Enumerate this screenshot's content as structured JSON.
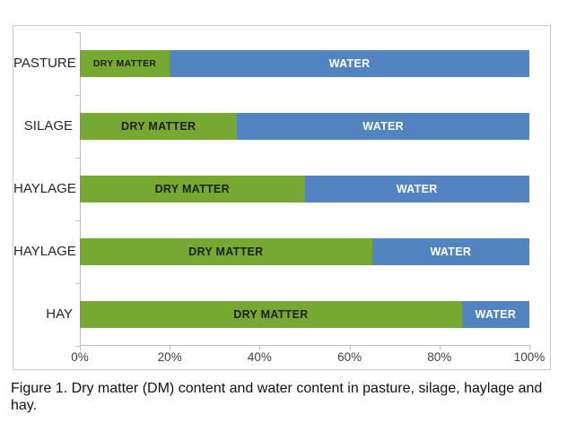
{
  "chart_data": {
    "type": "bar",
    "orientation": "horizontal",
    "stacked": true,
    "title": "",
    "xlabel": "",
    "ylabel": "",
    "xlim": [
      0,
      100
    ],
    "grid": false,
    "legend_position": "none (series labels printed inside bar segments)",
    "categories": [
      "PASTURE",
      "SILAGE",
      "HAYLAGE",
      "HAYLAGE",
      "HAY"
    ],
    "series": [
      {
        "name": "DRY MATTER",
        "values": [
          20,
          35,
          50,
          65,
          85
        ]
      },
      {
        "name": "WATER",
        "values": [
          80,
          65,
          50,
          35,
          15
        ]
      }
    ],
    "x_ticks": [
      "0%",
      "20%",
      "40%",
      "60%",
      "80%",
      "100%"
    ]
  },
  "caption": {
    "line1": "Figure 1. Dry matter (DM) content and water content in pasture, silage, haylage and",
    "line2": "hay."
  },
  "colors": {
    "dry_matter_fill": "#76a832",
    "water_fill": "#5284c2",
    "dry_matter_label": "#1f1f1f",
    "water_label": "#ffffff",
    "axis_line": "#bfbfbf",
    "chart_border": "#c9c9c9",
    "tick_label": "#404040",
    "category_label": "#262626",
    "caption_text": "#111111"
  }
}
